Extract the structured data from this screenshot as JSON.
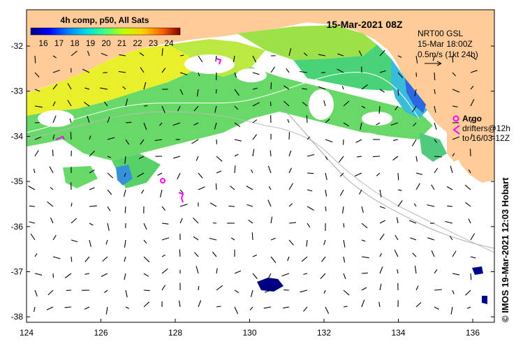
{
  "title": "15-Mar-2021 08Z",
  "colorbar": {
    "title": "4h comp, p50, All Sats",
    "ticks": [
      "16",
      "17",
      "18",
      "19",
      "20",
      "21",
      "22",
      "23",
      "24"
    ],
    "colors": [
      "#00007f",
      "#0000ff",
      "#0080ff",
      "#00ffff",
      "#80ff80",
      "#ffff00",
      "#ff8000",
      "#ff0000",
      "#7f0000"
    ]
  },
  "currents_note": {
    "line1": "NRT00 GSL",
    "line2": "15-Mar 18:00Z",
    "line3": "0.5m/s (1kt 24h)"
  },
  "argo_legend": {
    "label": "Argo",
    "line2": "drifters@12h",
    "line3": "to 16/03-12Z"
  },
  "credit": "© IMOS 19-Mar-2021 12:03 Hobart",
  "x_ticks": [
    "124",
    "126",
    "128",
    "130",
    "132",
    "134",
    "136"
  ],
  "y_ticks": [
    "-32",
    "-33",
    "-34",
    "-35",
    "-36",
    "-37",
    "-38"
  ],
  "colors": {
    "land": "#ffcc99",
    "ocean": "#ffffff",
    "argo": "#ff00ff"
  }
}
